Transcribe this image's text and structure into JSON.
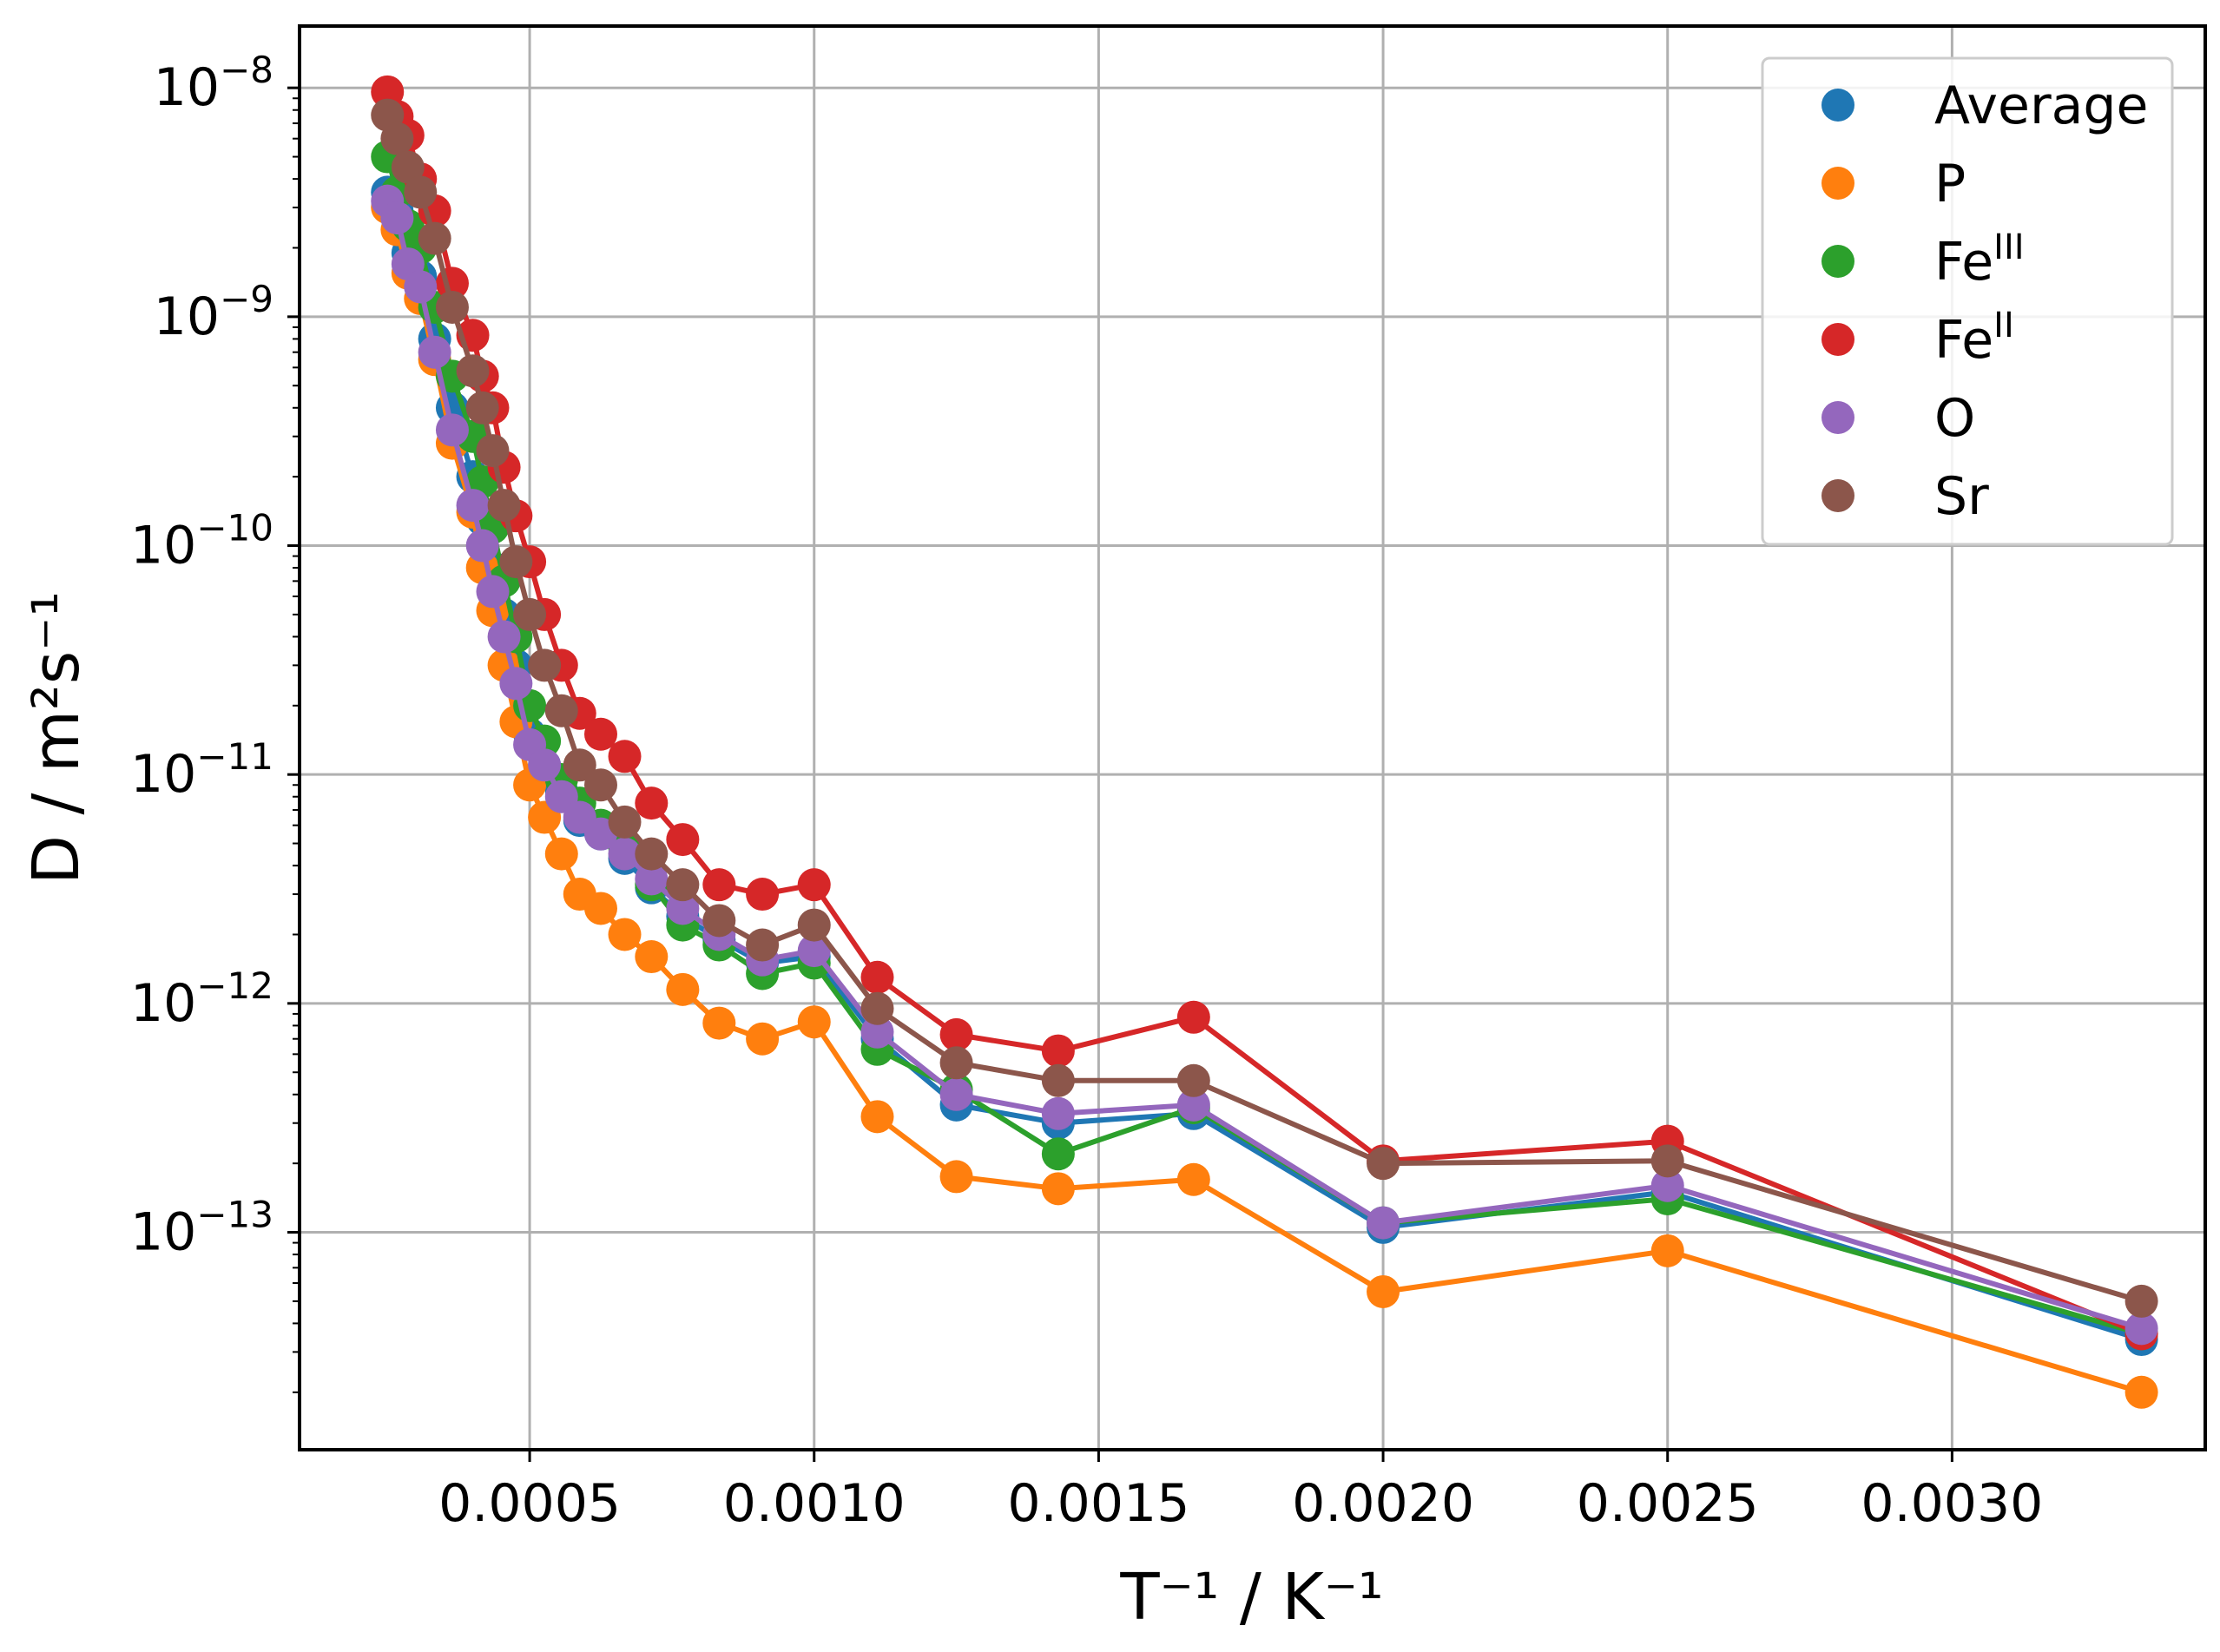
{
  "chart_data": {
    "type": "line",
    "title": "",
    "xlabel": "T⁻¹ / K⁻¹",
    "ylabel": "D / m²s⁻¹",
    "xscale": "linear",
    "yscale": "log",
    "xlim": [
      9.55e-05,
      0.003445
    ],
    "ylim_log10": [
      -13.95,
      -7.73
    ],
    "grid": true,
    "legend_position": "top-right",
    "x_ticks": [
      {
        "value": 0.0005,
        "label": "0.0005"
      },
      {
        "value": 0.001,
        "label": "0.0010"
      },
      {
        "value": 0.0015,
        "label": "0.0015"
      },
      {
        "value": 0.002,
        "label": "0.0020"
      },
      {
        "value": 0.0025,
        "label": "0.0025"
      },
      {
        "value": 0.003,
        "label": "0.0030"
      }
    ],
    "y_ticks": [
      {
        "exp": -8,
        "base": "10",
        "label_exp": "−8"
      },
      {
        "exp": -9,
        "base": "10",
        "label_exp": "−9"
      },
      {
        "exp": -10,
        "base": "10",
        "label_exp": "−10"
      },
      {
        "exp": -11,
        "base": "10",
        "label_exp": "−11"
      },
      {
        "exp": -12,
        "base": "10",
        "label_exp": "−12"
      },
      {
        "exp": -13,
        "base": "10",
        "label_exp": "−13"
      }
    ],
    "x": [
      0.00025,
      0.000267,
      0.000286,
      0.000308,
      0.000333,
      0.000364,
      0.0004,
      0.000417,
      0.000435,
      0.000455,
      0.000476,
      0.0005,
      0.000526,
      0.000556,
      0.000588,
      0.000625,
      0.000667,
      0.000714,
      0.000769,
      0.000833,
      0.000909,
      0.001,
      0.001111,
      0.00125,
      0.001429,
      0.001667,
      0.002,
      0.0025,
      0.003333
    ],
    "series": [
      {
        "name": "Average",
        "color": "#1f77b4",
        "values": [
          3.5e-09,
          2.9e-09,
          1.9e-09,
          1.5e-09,
          8e-10,
          4e-10,
          2e-10,
          1.3e-10,
          8e-11,
          5e-11,
          3e-11,
          1.5e-11,
          1.1e-11,
          8.5e-12,
          6.3e-12,
          5.5e-12,
          4.3e-12,
          3.2e-12,
          2.4e-12,
          1.9e-12,
          1.5e-12,
          1.6e-12,
          7e-13,
          3.6e-13,
          3e-13,
          3.3e-13,
          1.05e-13,
          1.5e-13,
          3.4e-14
        ]
      },
      {
        "name": "P",
        "color": "#ff7f0e",
        "values": [
          3e-09,
          2.4e-09,
          1.55e-09,
          1.2e-09,
          6.5e-10,
          2.8e-10,
          1.4e-10,
          8e-11,
          5.2e-11,
          3e-11,
          1.7e-11,
          9e-12,
          6.5e-12,
          4.5e-12,
          3e-12,
          2.6e-12,
          2e-12,
          1.6e-12,
          1.15e-12,
          8.2e-13,
          7e-13,
          8.3e-13,
          3.2e-13,
          1.75e-13,
          1.55e-13,
          1.7e-13,
          5.5e-14,
          8.3e-14,
          2e-14
        ]
      },
      {
        "name": "Feᴵᴵᴵ",
        "color": "#2ca02c",
        "values": [
          5e-09,
          3.5e-09,
          2.5e-09,
          2e-09,
          1.1e-09,
          5.5e-10,
          3e-10,
          1.9e-10,
          1.2e-10,
          7e-11,
          4e-11,
          2e-11,
          1.4e-11,
          9.5e-12,
          7.5e-12,
          6e-12,
          4.8e-12,
          3.3e-12,
          2.2e-12,
          1.8e-12,
          1.35e-12,
          1.5e-12,
          6.3e-13,
          4.2e-13,
          2.2e-13,
          3.5e-13,
          1.1e-13,
          1.4e-13,
          3.6e-14
        ]
      },
      {
        "name": "Feᴵᴵ",
        "color": "#d62728",
        "values": [
          9.6e-09,
          7.5e-09,
          6.2e-09,
          4e-09,
          2.9e-09,
          1.4e-09,
          8.3e-10,
          5.5e-10,
          4e-10,
          2.2e-10,
          1.35e-10,
          8.5e-11,
          5e-11,
          3e-11,
          1.85e-11,
          1.5e-11,
          1.2e-11,
          7.5e-12,
          5.2e-12,
          3.3e-12,
          3e-12,
          3.3e-12,
          1.3e-12,
          7.3e-13,
          6.2e-13,
          8.7e-13,
          2.05e-13,
          2.5e-13,
          3.6e-14
        ]
      },
      {
        "name": "O",
        "color": "#9467bd",
        "values": [
          3.2e-09,
          2.7e-09,
          1.7e-09,
          1.35e-09,
          7e-10,
          3.2e-10,
          1.5e-10,
          1e-10,
          6.3e-11,
          4e-11,
          2.5e-11,
          1.35e-11,
          1.1e-11,
          8e-12,
          6.5e-12,
          5.5e-12,
          4.5e-12,
          3.5e-12,
          2.6e-12,
          2e-12,
          1.55e-12,
          1.7e-12,
          7.5e-13,
          4e-13,
          3.3e-13,
          3.6e-13,
          1.1e-13,
          1.6e-13,
          3.8e-14
        ]
      },
      {
        "name": "Sr",
        "color": "#8c564b",
        "values": [
          7.6e-09,
          6e-09,
          4.5e-09,
          3.5e-09,
          2.2e-09,
          1.1e-09,
          5.8e-10,
          4e-10,
          2.6e-10,
          1.5e-10,
          8.5e-11,
          5e-11,
          3e-11,
          1.9e-11,
          1.1e-11,
          9e-12,
          6.2e-12,
          4.5e-12,
          3.3e-12,
          2.3e-12,
          1.8e-12,
          2.2e-12,
          9.5e-13,
          5.5e-13,
          4.6e-13,
          4.6e-13,
          2e-13,
          2.05e-13,
          5e-14
        ]
      }
    ],
    "legend": [
      {
        "series": "Average",
        "label": "Average",
        "base": "Average",
        "sup": ""
      },
      {
        "series": "P",
        "label": "P",
        "base": "P",
        "sup": ""
      },
      {
        "series": "Feᴵᴵᴵ",
        "label": "FeIII",
        "base": "Fe",
        "sup": "III"
      },
      {
        "series": "Feᴵᴵ",
        "label": "FeII",
        "base": "Fe",
        "sup": "II"
      },
      {
        "series": "O",
        "label": "O",
        "base": "O",
        "sup": ""
      },
      {
        "series": "Sr",
        "label": "Sr",
        "base": "Sr",
        "sup": ""
      }
    ]
  }
}
